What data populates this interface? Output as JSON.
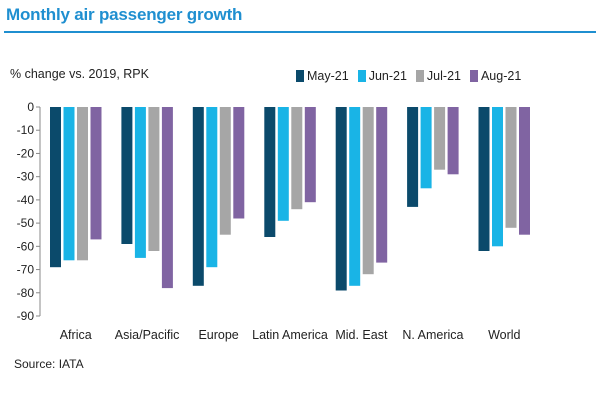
{
  "header": {
    "title": "Monthly air passenger growth"
  },
  "footer": {
    "source": "Source: IATA"
  },
  "chart_data": {
    "type": "bar",
    "ylabel": "% change vs. 2019, RPK",
    "categories": [
      "Africa",
      "Asia/Pacific",
      "Europe",
      "Latin America",
      "Mid. East",
      "N. America",
      "World"
    ],
    "series": [
      {
        "name": "May-21",
        "color": "#0b4a6b",
        "values": [
          -69,
          -59,
          -77,
          -56,
          -79,
          -43,
          -62
        ]
      },
      {
        "name": "Jun-21",
        "color": "#19b4e6",
        "values": [
          -66,
          -65,
          -69,
          -49,
          -77,
          -35,
          -60
        ]
      },
      {
        "name": "Jul-21",
        "color": "#a6a6a6",
        "values": [
          -66,
          -62,
          -55,
          -44,
          -72,
          -27,
          -52
        ]
      },
      {
        "name": "Aug-21",
        "color": "#8064a2",
        "values": [
          -57,
          -78,
          -48,
          -41,
          -67,
          -29,
          -55
        ]
      }
    ],
    "ylim": [
      -90,
      0
    ],
    "yticks": [
      0,
      -10,
      -20,
      -30,
      -40,
      -50,
      -60,
      -70,
      -80,
      -90
    ],
    "legend_position": "top-right",
    "grid": false
  }
}
